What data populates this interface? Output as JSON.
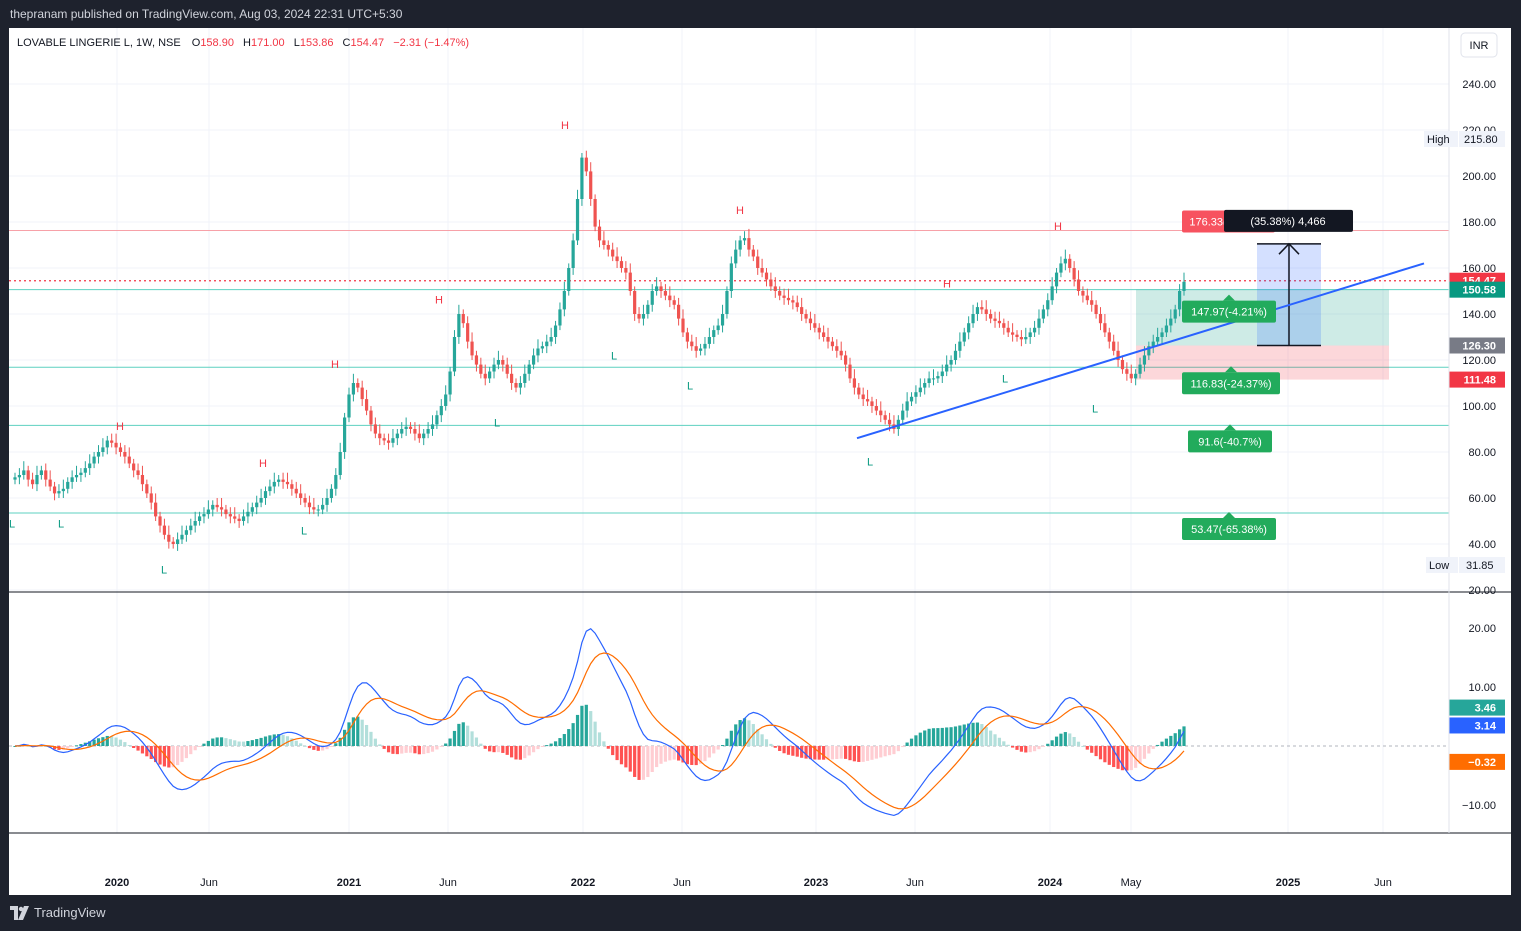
{
  "header": {
    "published_text": "thepranam published on TradingView.com, Aug 03, 2024 22:31 UTC+5:30"
  },
  "footer": {
    "brand": "TradingView"
  },
  "chart_data": {
    "type": "candlestick",
    "symbol": "LOVABLE LINGERIE L",
    "interval": "1W",
    "exchange": "NSE",
    "ohlc_header": {
      "open_label": "O",
      "open": "158.90",
      "high_label": "H",
      "high": "171.00",
      "low_label": "L",
      "low": "153.86",
      "close_label": "C",
      "close": "154.47",
      "change": "−2.31 (−1.47%)"
    },
    "currency": "INR",
    "price_axis": {
      "ylim": [
        20,
        260
      ],
      "ticks": [
        "240.00",
        "220.00",
        "200.00",
        "180.00",
        "160.00",
        "140.00",
        "120.00",
        "100.00",
        "80.00",
        "60.00",
        "40.00",
        "20.00"
      ]
    },
    "time_axis": {
      "ticks": [
        "2020",
        "Jun",
        "2021",
        "Jun",
        "2022",
        "Jun",
        "2023",
        "Jun",
        "2024",
        "May",
        "2025",
        "Jun"
      ]
    },
    "high_marker": {
      "label": "High",
      "value": "215.80"
    },
    "low_marker": {
      "label": "Low",
      "value": "31.85"
    },
    "price_badges": [
      {
        "value": "154.47",
        "color": "#f23645"
      },
      {
        "value": "150.58",
        "color": "#089981"
      },
      {
        "value": "126.30",
        "color": "#787b86"
      },
      {
        "value": "111.48",
        "color": "#f23645"
      }
    ],
    "target_labels": [
      {
        "text": "176.33(14.15%)",
        "color": "#f7525f"
      },
      {
        "text": "147.97(-4.21%)",
        "color": "#22ab5c"
      },
      {
        "text": "116.83(-24.37%)",
        "color": "#22ab5c"
      },
      {
        "text": "91.6(-40.7%)",
        "color": "#22ab5c"
      },
      {
        "text": "53.47(-65.38%)",
        "color": "#22ab5c"
      }
    ],
    "measure_label": "(35.38%) 4,466",
    "pivot_labels": {
      "highs": [
        {
          "text": "H",
          "value": 86
        },
        {
          "text": "H",
          "value": 70
        },
        {
          "text": "H",
          "value": 113
        },
        {
          "text": "H",
          "value": 141
        },
        {
          "text": "H",
          "value": 217
        },
        {
          "text": "H",
          "value": 180
        },
        {
          "text": "H",
          "value": 148
        },
        {
          "text": "H",
          "value": 173
        }
      ],
      "lows": [
        {
          "text": "L",
          "value": 55
        },
        {
          "text": "L",
          "value": 55
        },
        {
          "text": "L",
          "value": 35
        },
        {
          "text": "L",
          "value": 52
        },
        {
          "text": "L",
          "value": 99
        },
        {
          "text": "L",
          "value": 128
        },
        {
          "text": "L",
          "value": 115
        },
        {
          "text": "L",
          "value": 82
        },
        {
          "text": "L",
          "value": 118
        },
        {
          "text": "L",
          "value": 105
        }
      ]
    },
    "horizontal_levels": [
      176.33,
      150.58,
      116.83,
      91.6,
      53.47
    ],
    "current_price_line": 154.47,
    "trendline": {
      "from": 86,
      "to": 162
    },
    "close_series": [
      69,
      70,
      72,
      68,
      66,
      70,
      72,
      68,
      65,
      62,
      63,
      64,
      67,
      69,
      70,
      71,
      73,
      75,
      78,
      80,
      82,
      85,
      84,
      82,
      80,
      78,
      75,
      72,
      70,
      66,
      62,
      58,
      52,
      48,
      44,
      41,
      40,
      42,
      44,
      46,
      48,
      50,
      52,
      53,
      55,
      57,
      56,
      55,
      53,
      52,
      51,
      50,
      52,
      54,
      56,
      58,
      60,
      63,
      65,
      67,
      68,
      67,
      66,
      64,
      62,
      60,
      58,
      56,
      55,
      55,
      57,
      60,
      64,
      70,
      80,
      95,
      105,
      110,
      108,
      103,
      98,
      92,
      88,
      86,
      85,
      84,
      86,
      88,
      90,
      91,
      90,
      88,
      86,
      88,
      90,
      92,
      96,
      100,
      105,
      115,
      130,
      140,
      136,
      128,
      122,
      118,
      114,
      112,
      115,
      118,
      120,
      118,
      114,
      110,
      108,
      110,
      114,
      118,
      122,
      125,
      126,
      128,
      130,
      135,
      142,
      150,
      160,
      172,
      190,
      208,
      202,
      190,
      178,
      172,
      170,
      168,
      165,
      163,
      160,
      158,
      150,
      140,
      138,
      140,
      144,
      150,
      152,
      150,
      148,
      146,
      144,
      138,
      132,
      128,
      126,
      124,
      125,
      127,
      130,
      133,
      135,
      140,
      150,
      162,
      168,
      172,
      173,
      168,
      165,
      160,
      158,
      155,
      152,
      150,
      148,
      147,
      146,
      145,
      143,
      140,
      138,
      136,
      134,
      132,
      130,
      128,
      126,
      124,
      122,
      118,
      112,
      108,
      105,
      103,
      102,
      100,
      98,
      96,
      94,
      92,
      90,
      94,
      98,
      102,
      104,
      106,
      108,
      110,
      112,
      112,
      113,
      115,
      118,
      120,
      124,
      128,
      132,
      136,
      140,
      143,
      142,
      140,
      138,
      137,
      136,
      134,
      132,
      131,
      130,
      129,
      130,
      132,
      134,
      138,
      142,
      146,
      152,
      158,
      162,
      164,
      160,
      155,
      150,
      148,
      146,
      144,
      140,
      136,
      132,
      128,
      124,
      120,
      116,
      114,
      112,
      114,
      118,
      122,
      126,
      128,
      130,
      132,
      135,
      138,
      142,
      150,
      154
    ],
    "macd_panel": {
      "ylim": [
        -15,
        25
      ],
      "ticks": [
        "20.00",
        "10.00",
        "−10.00"
      ],
      "badges": [
        {
          "value": "3.46",
          "color": "#26a69a"
        },
        {
          "value": "3.14",
          "color": "#2962ff"
        },
        {
          "value": "−0.32",
          "color": "#ff6d00"
        }
      ]
    }
  }
}
